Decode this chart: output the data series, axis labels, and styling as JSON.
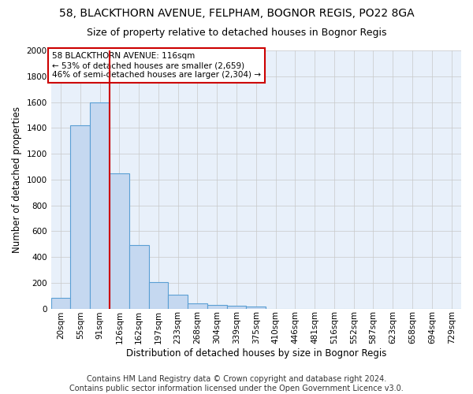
{
  "title1": "58, BLACKTHORN AVENUE, FELPHAM, BOGNOR REGIS, PO22 8GA",
  "title2": "Size of property relative to detached houses in Bognor Regis",
  "xlabel": "Distribution of detached houses by size in Bognor Regis",
  "ylabel": "Number of detached properties",
  "footer1": "Contains HM Land Registry data © Crown copyright and database right 2024.",
  "footer2": "Contains public sector information licensed under the Open Government Licence v3.0.",
  "bar_labels": [
    "20sqm",
    "55sqm",
    "91sqm",
    "126sqm",
    "162sqm",
    "197sqm",
    "233sqm",
    "268sqm",
    "304sqm",
    "339sqm",
    "375sqm",
    "410sqm",
    "446sqm",
    "481sqm",
    "516sqm",
    "552sqm",
    "587sqm",
    "623sqm",
    "658sqm",
    "694sqm",
    "729sqm"
  ],
  "bar_values": [
    80,
    1420,
    1600,
    1050,
    490,
    205,
    105,
    40,
    30,
    20,
    15,
    0,
    0,
    0,
    0,
    0,
    0,
    0,
    0,
    0,
    0
  ],
  "bar_color": "#c5d8f0",
  "bar_edge_color": "#5a9fd4",
  "bar_edge_width": 0.8,
  "grid_color": "#c8c8c8",
  "bg_color": "#e8f0fa",
  "vline_x": 2.5,
  "vline_color": "#cc0000",
  "annotation_text": "58 BLACKTHORN AVENUE: 116sqm\n← 53% of detached houses are smaller (2,659)\n46% of semi-detached houses are larger (2,304) →",
  "annotation_box_color": "#ffffff",
  "annotation_box_edge": "#cc0000",
  "annotation_fontsize": 7.5,
  "ylim": [
    0,
    2000
  ],
  "yticks": [
    0,
    200,
    400,
    600,
    800,
    1000,
    1200,
    1400,
    1600,
    1800,
    2000
  ],
  "title1_fontsize": 10,
  "title2_fontsize": 9,
  "xlabel_fontsize": 8.5,
  "ylabel_fontsize": 8.5,
  "tick_fontsize": 7.5,
  "footer_fontsize": 7.0
}
